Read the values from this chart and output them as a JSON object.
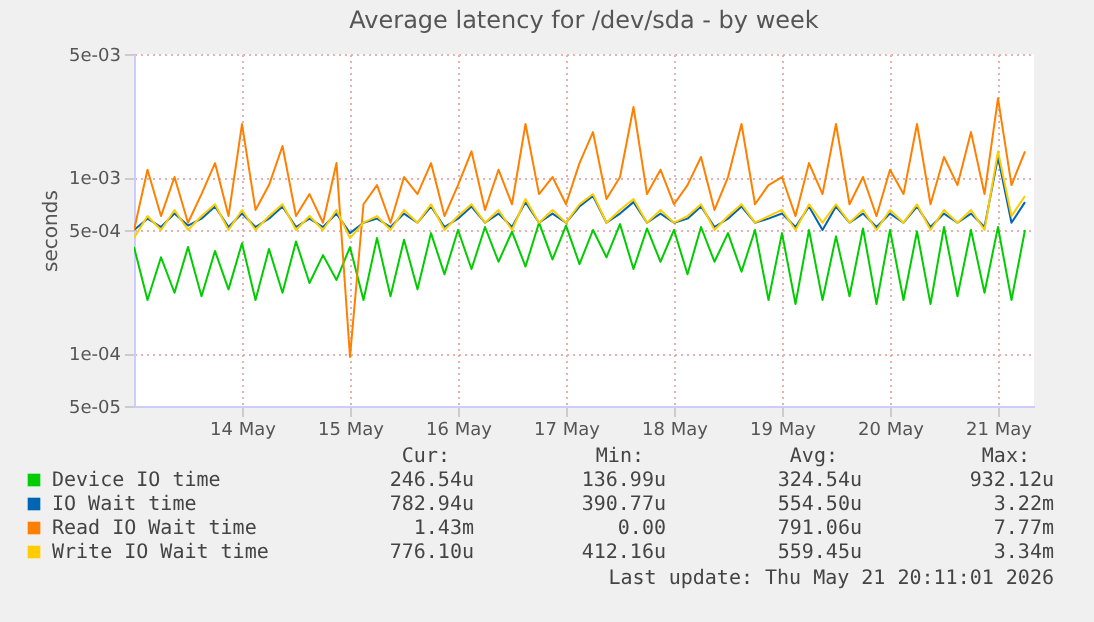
{
  "chart_data": {
    "type": "line",
    "title": "Average latency for /dev/sda - by week",
    "ylabel": "seconds",
    "x": [
      "2026-05-13T12:00",
      "2026-05-13T15:00",
      "2026-05-13T18:00",
      "2026-05-13T21:00",
      "2026-05-14T00:00",
      "2026-05-14T03:00",
      "2026-05-14T06:00",
      "2026-05-14T09:00",
      "2026-05-14T12:00",
      "2026-05-14T15:00",
      "2026-05-14T18:00",
      "2026-05-14T21:00",
      "2026-05-15T00:00",
      "2026-05-15T03:00",
      "2026-05-15T06:00",
      "2026-05-15T09:00",
      "2026-05-15T12:00",
      "2026-05-15T15:00",
      "2026-05-15T18:00",
      "2026-05-15T21:00",
      "2026-05-16T00:00",
      "2026-05-16T03:00",
      "2026-05-16T06:00",
      "2026-05-16T09:00",
      "2026-05-16T12:00",
      "2026-05-16T15:00",
      "2026-05-16T18:00",
      "2026-05-16T21:00",
      "2026-05-17T00:00",
      "2026-05-17T03:00",
      "2026-05-17T06:00",
      "2026-05-17T09:00",
      "2026-05-17T12:00",
      "2026-05-17T15:00",
      "2026-05-17T18:00",
      "2026-05-17T21:00",
      "2026-05-18T00:00",
      "2026-05-18T03:00",
      "2026-05-18T06:00",
      "2026-05-18T09:00",
      "2026-05-18T12:00",
      "2026-05-18T15:00",
      "2026-05-18T18:00",
      "2026-05-18T21:00",
      "2026-05-19T00:00",
      "2026-05-19T03:00",
      "2026-05-19T06:00",
      "2026-05-19T09:00",
      "2026-05-19T12:00",
      "2026-05-19T15:00",
      "2026-05-19T18:00",
      "2026-05-19T21:00",
      "2026-05-20T00:00",
      "2026-05-20T03:00",
      "2026-05-20T06:00",
      "2026-05-20T09:00",
      "2026-05-20T12:00",
      "2026-05-20T15:00",
      "2026-05-20T18:00",
      "2026-05-20T21:00",
      "2026-05-21T00:00",
      "2026-05-21T03:00",
      "2026-05-21T06:00",
      "2026-05-21T09:00",
      "2026-05-21T12:00",
      "2026-05-21T15:00",
      "2026-05-21T18:00"
    ],
    "series": [
      {
        "name": "Device IO time",
        "color": "#00cc00",
        "values": [
          0.0004,
          0.0002,
          0.00035,
          0.00022,
          0.0004,
          0.00021,
          0.00038,
          0.00023,
          0.00042,
          0.0002,
          0.00039,
          0.00022,
          0.00043,
          0.00025,
          0.00036,
          0.00026,
          0.0004,
          0.0002,
          0.00045,
          0.00021,
          0.00044,
          0.00023,
          0.00048,
          0.00028,
          0.0005,
          0.0003,
          0.00052,
          0.00033,
          0.00049,
          0.00031,
          0.00055,
          0.00034,
          0.00053,
          0.00032,
          0.0005,
          0.00035,
          0.00054,
          0.0003,
          0.00051,
          0.00033,
          0.0005,
          0.00028,
          0.00052,
          0.00033,
          0.00048,
          0.00029,
          0.0005,
          0.0002,
          0.00048,
          0.00019,
          0.0005,
          0.0002,
          0.00046,
          0.00021,
          0.00051,
          0.00019,
          0.0005,
          0.0002,
          0.00049,
          0.00019,
          0.00052,
          0.00021,
          0.0005,
          0.00022,
          0.00052,
          0.0002,
          0.0005
        ]
      },
      {
        "name": "IO Wait time",
        "color": "#0066b3",
        "values": [
          0.0005,
          0.00058,
          0.00052,
          0.00062,
          0.00053,
          0.00058,
          0.00068,
          0.00052,
          0.00062,
          0.00052,
          0.00058,
          0.00068,
          0.00052,
          0.00058,
          0.00052,
          0.00062,
          0.00048,
          0.00055,
          0.00058,
          0.00052,
          0.00062,
          0.00055,
          0.00068,
          0.00052,
          0.00058,
          0.00068,
          0.00055,
          0.00062,
          0.00052,
          0.00072,
          0.00055,
          0.00062,
          0.00055,
          0.00068,
          0.00078,
          0.00055,
          0.00062,
          0.00072,
          0.00055,
          0.00062,
          0.00055,
          0.00058,
          0.00068,
          0.00052,
          0.00058,
          0.00068,
          0.00055,
          0.00058,
          0.00062,
          0.00052,
          0.00068,
          0.0005,
          0.00068,
          0.00055,
          0.00062,
          0.00052,
          0.00062,
          0.00055,
          0.00068,
          0.00052,
          0.00062,
          0.00055,
          0.00062,
          0.00052,
          0.0013,
          0.00055,
          0.00072
        ]
      },
      {
        "name": "Read IO Wait time",
        "color": "#ff8000",
        "values": [
          0.0005,
          0.0011,
          0.0006,
          0.001,
          0.00055,
          0.0008,
          0.0012,
          0.0006,
          0.002,
          0.00065,
          0.0009,
          0.0015,
          0.0006,
          0.0008,
          0.00055,
          0.0012,
          9.5e-05,
          0.0007,
          0.0009,
          0.00055,
          0.001,
          0.0008,
          0.0012,
          0.0006,
          0.0009,
          0.0014,
          0.00065,
          0.0011,
          0.0007,
          0.002,
          0.0008,
          0.001,
          0.0007,
          0.0012,
          0.0018,
          0.00075,
          0.001,
          0.0025,
          0.0008,
          0.0011,
          0.0007,
          0.0009,
          0.0013,
          0.00065,
          0.001,
          0.002,
          0.0007,
          0.0009,
          0.001,
          0.0006,
          0.0012,
          0.0008,
          0.002,
          0.0007,
          0.001,
          0.0006,
          0.0011,
          0.0008,
          0.002,
          0.0007,
          0.0013,
          0.0009,
          0.0018,
          0.0008,
          0.0028,
          0.0009,
          0.0014
        ]
      },
      {
        "name": "Write IO Wait time",
        "color": "#ffcc00",
        "values": [
          0.00045,
          0.0006,
          0.0005,
          0.00065,
          0.0005,
          0.0006,
          0.0007,
          0.0005,
          0.00065,
          0.0005,
          0.0006,
          0.0007,
          0.0005,
          0.0006,
          0.0005,
          0.00065,
          0.00045,
          0.00055,
          0.0006,
          0.0005,
          0.00065,
          0.00055,
          0.0007,
          0.0005,
          0.0006,
          0.0007,
          0.00055,
          0.00065,
          0.0005,
          0.00075,
          0.00055,
          0.00065,
          0.00055,
          0.0007,
          0.0008,
          0.00055,
          0.00065,
          0.00075,
          0.00055,
          0.00065,
          0.00055,
          0.0006,
          0.0007,
          0.0005,
          0.0006,
          0.0007,
          0.00055,
          0.0006,
          0.00065,
          0.0005,
          0.0007,
          0.00055,
          0.0007,
          0.00055,
          0.00065,
          0.0005,
          0.00065,
          0.00055,
          0.0007,
          0.0005,
          0.00065,
          0.00055,
          0.00065,
          0.0005,
          0.0014,
          0.0006,
          0.00078
        ]
      }
    ],
    "xlim": [
      "2026-05-13T12:00",
      "2026-05-21T20:00"
    ],
    "xticks": [
      {
        "value": "2026-05-14T12:00",
        "label": "14 May"
      },
      {
        "value": "2026-05-15T12:00",
        "label": "15 May"
      },
      {
        "value": "2026-05-16T12:00",
        "label": "16 May"
      },
      {
        "value": "2026-05-17T12:00",
        "label": "17 May"
      },
      {
        "value": "2026-05-18T12:00",
        "label": "18 May"
      },
      {
        "value": "2026-05-19T12:00",
        "label": "19 May"
      },
      {
        "value": "2026-05-20T12:00",
        "label": "20 May"
      },
      {
        "value": "2026-05-21T12:00",
        "label": "21 May"
      }
    ],
    "ylim": [
      5e-05,
      0.005
    ],
    "yticks": [
      {
        "value": 5e-05,
        "label": "5e-05"
      },
      {
        "value": 0.0001,
        "label": "1e-04"
      },
      {
        "value": 0.0005,
        "label": "5e-04"
      },
      {
        "value": 0.001,
        "label": "1e-03"
      },
      {
        "value": 0.005,
        "label": "5e-03"
      }
    ],
    "log": true,
    "grid": true,
    "legend": "bottom",
    "marker": "none",
    "line_style": "solid",
    "annotations": [
      "Cur:",
      "Min:",
      "Avg:",
      "Max:",
      "246.54u",
      "136.99u",
      "324.54u",
      "932.12u",
      "782.94u",
      "390.77u",
      "554.50u",
      "3.22m",
      "1.43m",
      "0.00",
      "791.06u",
      "7.77m",
      "776.10u",
      "412.16u",
      "559.45u",
      "3.34m",
      "Last update: Thu May 21 20:11:01 2026"
    ]
  }
}
